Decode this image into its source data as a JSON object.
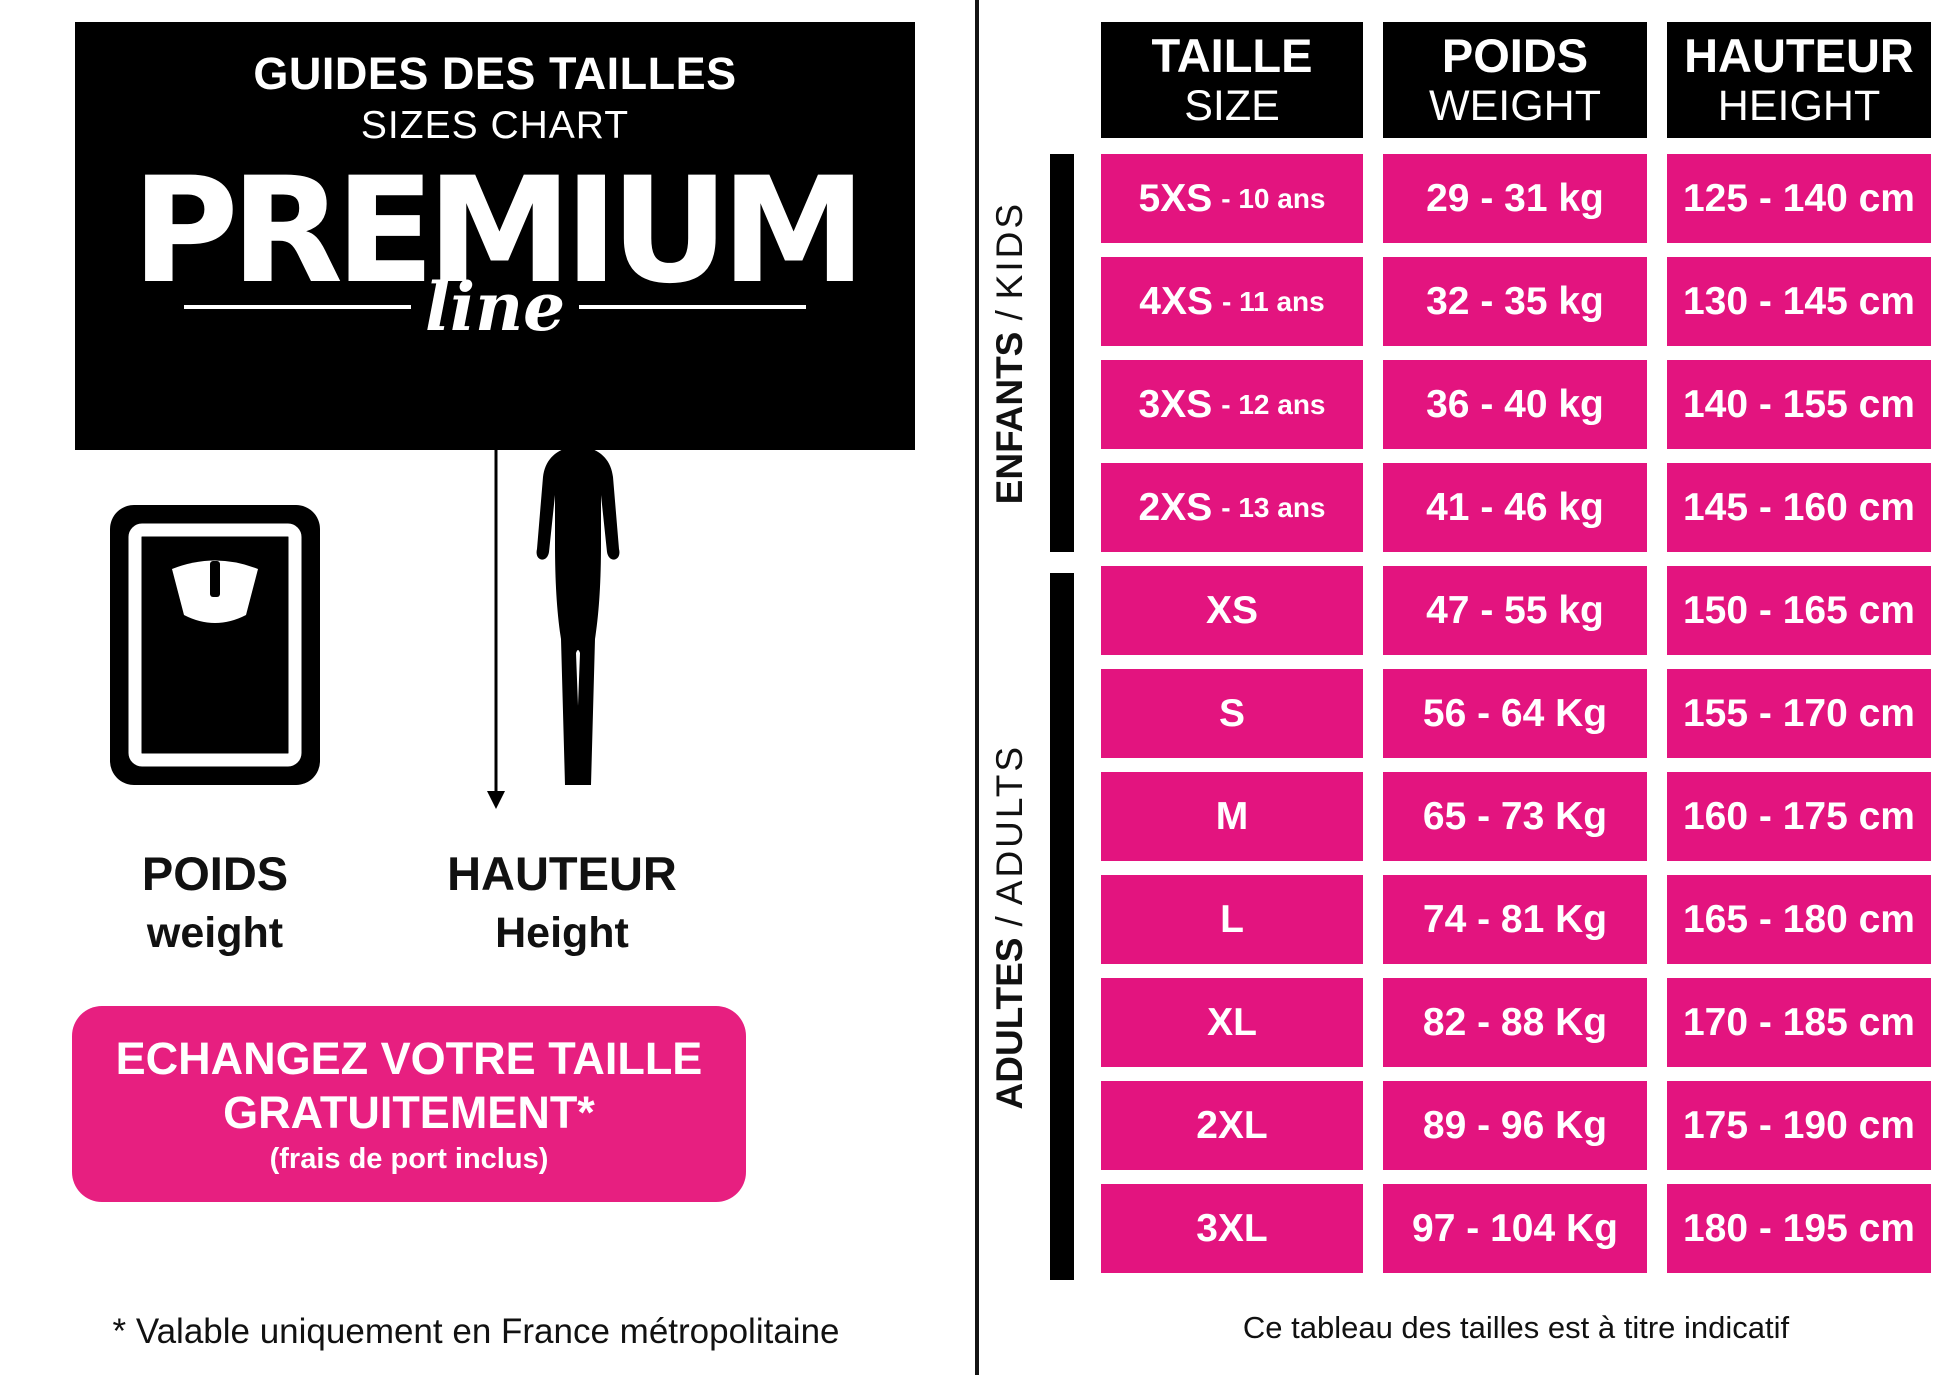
{
  "colors": {
    "pink": "#E3147F",
    "cta_pink": "#E71F80",
    "black": "#000000",
    "white": "#FFFFFF"
  },
  "left_panel": {
    "logo_box": {
      "title_fr": "GUIDES DES TAILLES",
      "title_en": "SIZES CHART",
      "brand": "PREMIUM",
      "brand_script": "line"
    },
    "measures": {
      "weight_fr": "POIDS",
      "weight_en": "weight",
      "height_fr": "HAUTEUR",
      "height_en": "Height"
    },
    "cta": {
      "line1": "ECHANGEZ VOTRE TAILLE",
      "line2": "GRATUITEMENT*",
      "line3": "(frais de port inclus)"
    },
    "footnote": "* Valable uniquement en France métropolitaine"
  },
  "size_table": {
    "headers": [
      {
        "fr": "TAILLE",
        "en": "SIZE"
      },
      {
        "fr": "POIDS",
        "en": "WEIGHT"
      },
      {
        "fr": "HAUTEUR",
        "en": "HEIGHT"
      }
    ],
    "group_sep": "/",
    "groups": [
      {
        "fr": "ENFANTS",
        "en": "KIDS"
      },
      {
        "fr": "ADULTES",
        "en": "ADULTS"
      }
    ],
    "rows": [
      {
        "group": "kids",
        "size": "5XS",
        "age": "- 10 ans",
        "weight": "29 - 31 kg",
        "height": "125 - 140 cm"
      },
      {
        "group": "kids",
        "size": "4XS",
        "age": "- 11 ans",
        "weight": "32 - 35 kg",
        "height": "130 - 145 cm"
      },
      {
        "group": "kids",
        "size": "3XS",
        "age": "- 12 ans",
        "weight": "36 - 40 kg",
        "height": "140 - 155 cm"
      },
      {
        "group": "kids",
        "size": "2XS",
        "age": "- 13 ans",
        "weight": "41 - 46 kg",
        "height": "145 - 160 cm"
      },
      {
        "group": "adults",
        "size": "XS",
        "age": "",
        "weight": "47 - 55 kg",
        "height": "150 - 165 cm"
      },
      {
        "group": "adults",
        "size": "S",
        "age": "",
        "weight": "56 - 64 Kg",
        "height": "155 - 170 cm"
      },
      {
        "group": "adults",
        "size": "M",
        "age": "",
        "weight": "65 - 73 Kg",
        "height": "160 - 175 cm"
      },
      {
        "group": "adults",
        "size": "L",
        "age": "",
        "weight": "74 - 81 Kg",
        "height": "165 - 180 cm"
      },
      {
        "group": "adults",
        "size": "XL",
        "age": "",
        "weight": "82 - 88 Kg",
        "height": "170 - 185 cm"
      },
      {
        "group": "adults",
        "size": "2XL",
        "age": "",
        "weight": "89 - 96 Kg",
        "height": "175 - 190 cm"
      },
      {
        "group": "adults",
        "size": "3XL",
        "age": "",
        "weight": "97 - 104 Kg",
        "height": "180 - 195 cm"
      }
    ],
    "footer": "Ce tableau des tailles est à titre indicatif"
  }
}
